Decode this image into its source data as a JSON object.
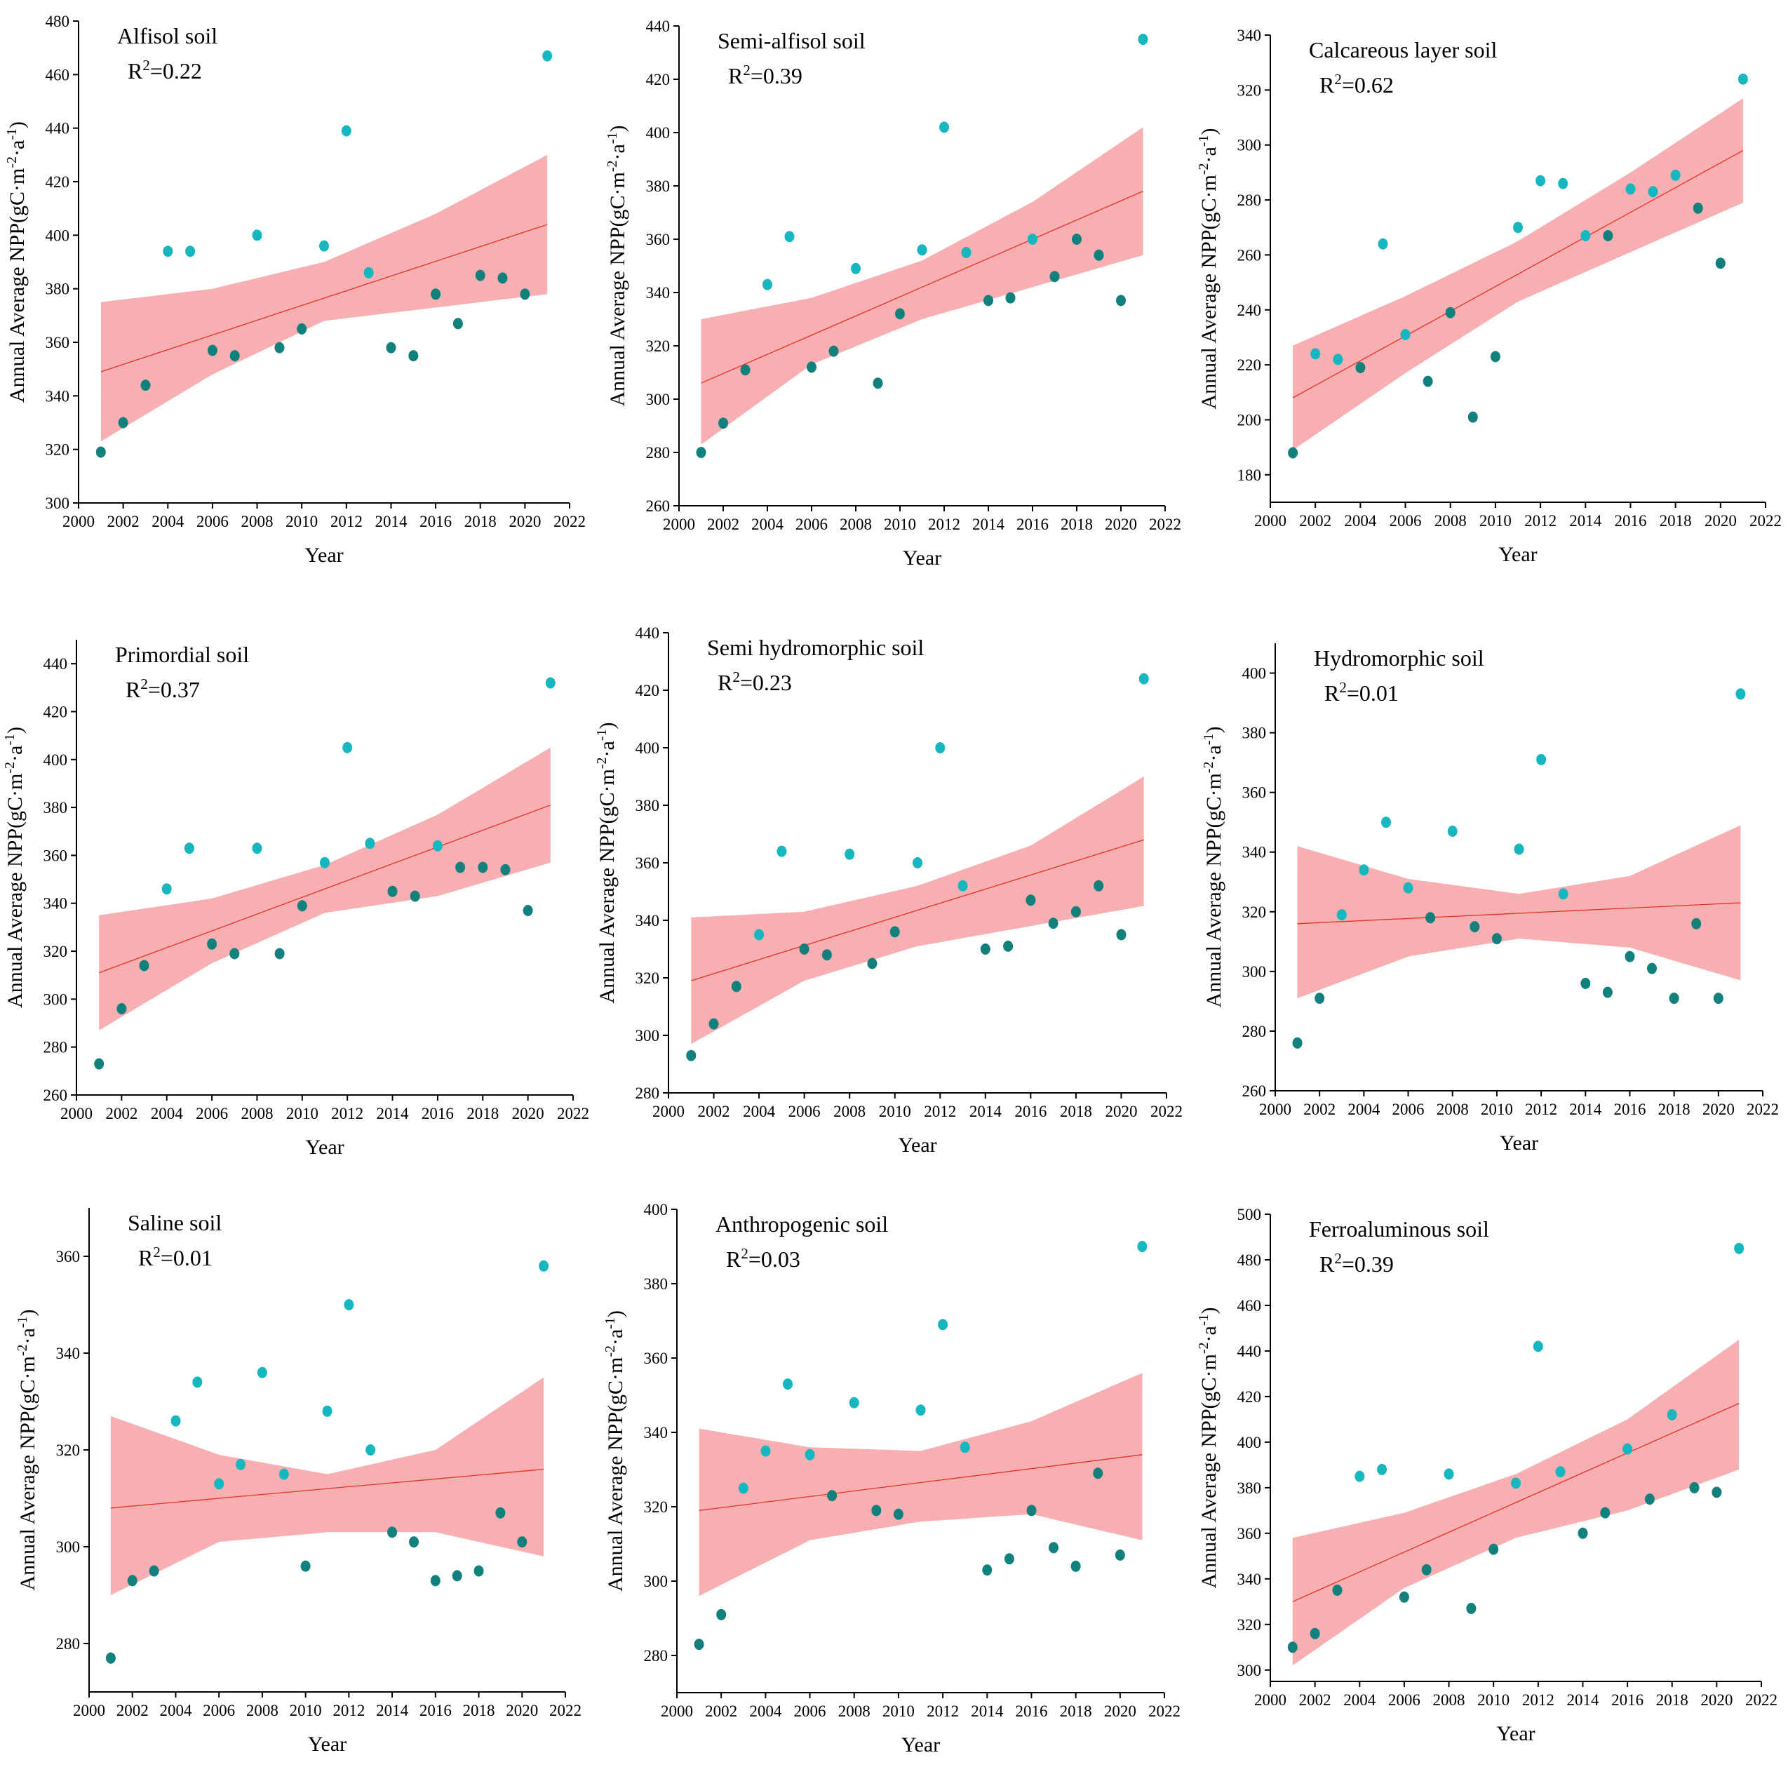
{
  "figure": {
    "xlabel": "Year",
    "ylabel": "Annual Average NPP(gC·m⁻²·a⁻¹)",
    "ylabel_parts": {
      "main": "Annual Average NPP(gC·m",
      "sup1": "-2",
      "mid": "·a",
      "sup2": "-1",
      "end": ")"
    },
    "colors": {
      "point_above": "#17b7bf",
      "point_below": "#12807d",
      "fit_line": "#e8302a",
      "confidence_band": "#f7a1a3"
    }
  },
  "chart_data": [
    {
      "type": "scatter",
      "title": "Alfisol soil",
      "r2_label": "R",
      "r2_sup": "2",
      "r2_value": "=0.22",
      "xlabel": "Year",
      "ylabel": "Annual Average NPP(gC·m⁻²·a⁻¹)",
      "xlim": [
        2000,
        2022
      ],
      "xticks": [
        2000,
        2002,
        2004,
        2006,
        2008,
        2010,
        2012,
        2014,
        2016,
        2018,
        2020,
        2022
      ],
      "ylim": [
        300,
        480
      ],
      "yticks": [
        300,
        320,
        340,
        360,
        380,
        400,
        420,
        440,
        460,
        480
      ],
      "x": [
        2001,
        2002,
        2003,
        2004,
        2005,
        2006,
        2007,
        2008,
        2009,
        2010,
        2011,
        2012,
        2013,
        2014,
        2015,
        2016,
        2017,
        2018,
        2019,
        2020,
        2021
      ],
      "values": [
        319,
        330,
        344,
        394,
        394,
        357,
        355,
        400,
        358,
        365,
        396,
        439,
        386,
        358,
        355,
        378,
        367,
        385,
        384,
        378,
        467
      ],
      "fit": {
        "x": [
          2001,
          2021
        ],
        "y": [
          349,
          404
        ]
      },
      "band": {
        "x": [
          2001,
          2006,
          2011,
          2016,
          2021
        ],
        "upper": [
          375,
          380,
          390,
          408,
          430
        ],
        "lower": [
          323,
          348,
          368,
          373,
          378
        ]
      }
    },
    {
      "type": "scatter",
      "title": "Semi-alfisol soil",
      "r2_label": "R",
      "r2_sup": "2",
      "r2_value": "=0.39",
      "xlabel": "Year",
      "ylabel": "Annual Average NPP(gC·m⁻²·a⁻¹)",
      "xlim": [
        2000,
        2022
      ],
      "xticks": [
        2000,
        2002,
        2004,
        2006,
        2008,
        2010,
        2012,
        2014,
        2016,
        2018,
        2020,
        2022
      ],
      "ylim": [
        260,
        440
      ],
      "yticks": [
        260,
        280,
        300,
        320,
        340,
        360,
        380,
        400,
        420,
        440
      ],
      "x": [
        2001,
        2002,
        2003,
        2004,
        2005,
        2006,
        2007,
        2008,
        2009,
        2010,
        2011,
        2012,
        2013,
        2014,
        2015,
        2016,
        2017,
        2018,
        2019,
        2020,
        2021
      ],
      "values": [
        280,
        291,
        311,
        343,
        361,
        312,
        318,
        349,
        306,
        332,
        356,
        402,
        355,
        337,
        338,
        360,
        346,
        360,
        354,
        337,
        435
      ],
      "fit": {
        "x": [
          2001,
          2021
        ],
        "y": [
          306,
          378
        ]
      },
      "band": {
        "x": [
          2001,
          2006,
          2011,
          2016,
          2021
        ],
        "upper": [
          330,
          338,
          352,
          374,
          402
        ],
        "lower": [
          283,
          313,
          330,
          342,
          354
        ]
      }
    },
    {
      "type": "scatter",
      "title": "Calcareous layer soil",
      "r2_label": "R",
      "r2_sup": "2",
      "r2_value": "=0.62",
      "xlabel": "Year",
      "ylabel": "Annual Average NPP(gC·m⁻²·a⁻¹)",
      "xlim": [
        2000,
        2022
      ],
      "xticks": [
        2000,
        2002,
        2004,
        2006,
        2008,
        2010,
        2012,
        2014,
        2016,
        2018,
        2020,
        2022
      ],
      "ylim": [
        170,
        340
      ],
      "yticks": [
        180,
        200,
        220,
        240,
        260,
        280,
        300,
        320,
        340
      ],
      "x": [
        2001,
        2002,
        2003,
        2004,
        2005,
        2006,
        2007,
        2008,
        2009,
        2010,
        2011,
        2012,
        2013,
        2014,
        2015,
        2016,
        2017,
        2018,
        2019,
        2020,
        2021
      ],
      "values": [
        188,
        224,
        222,
        219,
        264,
        231,
        214,
        239,
        201,
        223,
        270,
        287,
        286,
        267,
        267,
        284,
        283,
        289,
        277,
        257,
        324
      ],
      "fit": {
        "x": [
          2001,
          2021
        ],
        "y": [
          208,
          298
        ]
      },
      "band": {
        "x": [
          2001,
          2006,
          2011,
          2016,
          2021
        ],
        "upper": [
          227,
          245,
          265,
          290,
          317
        ],
        "lower": [
          189,
          217,
          243,
          261,
          279
        ]
      }
    },
    {
      "type": "scatter",
      "title": "Primordial soil",
      "r2_label": "R",
      "r2_sup": "2",
      "r2_value": "=0.37",
      "xlabel": "Year",
      "ylabel": "Annual Average NPP(gC·m⁻²·a⁻¹)",
      "xlim": [
        2000,
        2022
      ],
      "xticks": [
        2000,
        2002,
        2004,
        2006,
        2008,
        2010,
        2012,
        2014,
        2016,
        2018,
        2020,
        2022
      ],
      "ylim": [
        260,
        450
      ],
      "yticks": [
        260,
        280,
        300,
        320,
        340,
        360,
        380,
        400,
        420,
        440
      ],
      "x": [
        2001,
        2002,
        2003,
        2004,
        2005,
        2006,
        2007,
        2008,
        2009,
        2010,
        2011,
        2012,
        2013,
        2014,
        2015,
        2016,
        2017,
        2018,
        2019,
        2020,
        2021
      ],
      "values": [
        273,
        296,
        314,
        346,
        363,
        323,
        319,
        363,
        319,
        339,
        357,
        405,
        365,
        345,
        343,
        364,
        355,
        355,
        354,
        337,
        432
      ],
      "fit": {
        "x": [
          2001,
          2021
        ],
        "y": [
          311,
          381
        ]
      },
      "band": {
        "x": [
          2001,
          2006,
          2011,
          2016,
          2021
        ],
        "upper": [
          335,
          342,
          356,
          377,
          405
        ],
        "lower": [
          287,
          315,
          336,
          343,
          357
        ]
      }
    },
    {
      "type": "scatter",
      "title": "Semi hydromorphic soil",
      "r2_label": "R",
      "r2_sup": "2",
      "r2_value": "=0.23",
      "xlabel": "Year",
      "ylabel": "Annual Average NPP(gC·m⁻²·a⁻¹)",
      "xlim": [
        2000,
        2022
      ],
      "xticks": [
        2000,
        2002,
        2004,
        2006,
        2008,
        2010,
        2012,
        2014,
        2016,
        2018,
        2020,
        2022
      ],
      "ylim": [
        280,
        440
      ],
      "yticks": [
        280,
        300,
        320,
        340,
        360,
        380,
        400,
        420,
        440
      ],
      "x": [
        2001,
        2002,
        2003,
        2004,
        2005,
        2006,
        2007,
        2008,
        2009,
        2010,
        2011,
        2012,
        2013,
        2014,
        2015,
        2016,
        2017,
        2018,
        2019,
        2020,
        2021
      ],
      "values": [
        293,
        304,
        317,
        335,
        364,
        330,
        328,
        363,
        325,
        336,
        360,
        400,
        352,
        330,
        331,
        347,
        339,
        343,
        352,
        335,
        424
      ],
      "fit": {
        "x": [
          2001,
          2021
        ],
        "y": [
          319,
          368
        ]
      },
      "band": {
        "x": [
          2001,
          2006,
          2011,
          2016,
          2021
        ],
        "upper": [
          341,
          343,
          352,
          366,
          390
        ],
        "lower": [
          297,
          319,
          331,
          338,
          345
        ]
      }
    },
    {
      "type": "scatter",
      "title": "Hydromorphic soil",
      "r2_label": "R",
      "r2_sup": "2",
      "r2_value": "=0.01",
      "xlabel": "Year",
      "ylabel": "Annual Average NPP(gC·m⁻²·a⁻¹)",
      "xlim": [
        2000,
        2022
      ],
      "xticks": [
        2000,
        2002,
        2004,
        2006,
        2008,
        2010,
        2012,
        2014,
        2016,
        2018,
        2020,
        2022
      ],
      "ylim": [
        260,
        410
      ],
      "yticks": [
        260,
        280,
        300,
        320,
        340,
        360,
        380,
        400
      ],
      "x": [
        2001,
        2002,
        2003,
        2004,
        2005,
        2006,
        2007,
        2008,
        2009,
        2010,
        2011,
        2012,
        2013,
        2014,
        2015,
        2016,
        2017,
        2018,
        2019,
        2020,
        2021
      ],
      "values": [
        276,
        291,
        319,
        334,
        350,
        328,
        318,
        347,
        315,
        311,
        341,
        371,
        326,
        296,
        293,
        305,
        301,
        291,
        316,
        291,
        393
      ],
      "fit": {
        "x": [
          2001,
          2021
        ],
        "y": [
          316,
          323
        ]
      },
      "band": {
        "x": [
          2001,
          2006,
          2011,
          2016,
          2021
        ],
        "upper": [
          342,
          331,
          326,
          332,
          349
        ],
        "lower": [
          291,
          305,
          311,
          308,
          297
        ]
      }
    },
    {
      "type": "scatter",
      "title": "Saline soil",
      "r2_label": "R",
      "r2_sup": "2",
      "r2_value": "=0.01",
      "xlabel": "Year",
      "ylabel": "Annual Average NPP(gC·m⁻²·a⁻¹)",
      "xlim": [
        2000,
        2022
      ],
      "xticks": [
        2000,
        2002,
        2004,
        2006,
        2008,
        2010,
        2012,
        2014,
        2016,
        2018,
        2020,
        2022
      ],
      "ylim": [
        270,
        370
      ],
      "yticks": [
        280,
        300,
        320,
        340,
        360
      ],
      "x": [
        2001,
        2002,
        2003,
        2004,
        2005,
        2006,
        2007,
        2008,
        2009,
        2010,
        2011,
        2012,
        2013,
        2014,
        2015,
        2016,
        2017,
        2018,
        2019,
        2020,
        2021
      ],
      "values": [
        277,
        293,
        295,
        326,
        334,
        313,
        317,
        336,
        315,
        296,
        328,
        350,
        320,
        303,
        301,
        293,
        294,
        295,
        307,
        301,
        358
      ],
      "fit": {
        "x": [
          2001,
          2021
        ],
        "y": [
          308,
          316
        ]
      },
      "band": {
        "x": [
          2001,
          2006,
          2011,
          2016,
          2021
        ],
        "upper": [
          327,
          319,
          315,
          320,
          335
        ],
        "lower": [
          290,
          301,
          303,
          303,
          298
        ]
      }
    },
    {
      "type": "scatter",
      "title": "Anthropogenic soil",
      "r2_label": "R",
      "r2_sup": "2",
      "r2_value": "=0.03",
      "xlabel": "Year",
      "ylabel": "Annual Average NPP(gC·m⁻²·a⁻¹)",
      "xlim": [
        2000,
        2022
      ],
      "xticks": [
        2000,
        2002,
        2004,
        2006,
        2008,
        2010,
        2012,
        2014,
        2016,
        2018,
        2020,
        2022
      ],
      "ylim": [
        270,
        400
      ],
      "yticks": [
        280,
        300,
        320,
        340,
        360,
        380,
        400
      ],
      "x": [
        2001,
        2002,
        2003,
        2004,
        2005,
        2006,
        2007,
        2008,
        2009,
        2010,
        2011,
        2012,
        2013,
        2014,
        2015,
        2016,
        2017,
        2018,
        2019,
        2020,
        2021
      ],
      "values": [
        283,
        291,
        325,
        335,
        353,
        334,
        323,
        348,
        319,
        318,
        346,
        369,
        336,
        303,
        306,
        319,
        309,
        304,
        329,
        307,
        390
      ],
      "fit": {
        "x": [
          2001,
          2021
        ],
        "y": [
          319,
          334
        ]
      },
      "band": {
        "x": [
          2001,
          2006,
          2011,
          2016,
          2021
        ],
        "upper": [
          341,
          336,
          335,
          343,
          356
        ],
        "lower": [
          296,
          311,
          316,
          318,
          311
        ]
      }
    },
    {
      "type": "scatter",
      "title": "Ferroaluminous soil",
      "r2_label": "R",
      "r2_sup": "2",
      "r2_value": "=0.39",
      "xlabel": "Year",
      "ylabel": "Annual Average NPP(gC·m⁻²·a⁻¹)",
      "xlim": [
        2000,
        2022
      ],
      "xticks": [
        2000,
        2002,
        2004,
        2006,
        2008,
        2010,
        2012,
        2014,
        2016,
        2018,
        2020,
        2022
      ],
      "ylim": [
        295,
        500
      ],
      "yticks": [
        300,
        320,
        340,
        360,
        380,
        400,
        420,
        440,
        460,
        480,
        500
      ],
      "x": [
        2001,
        2002,
        2003,
        2004,
        2005,
        2006,
        2007,
        2008,
        2009,
        2010,
        2011,
        2012,
        2013,
        2014,
        2015,
        2016,
        2017,
        2018,
        2019,
        2020,
        2021
      ],
      "values": [
        310,
        316,
        335,
        385,
        388,
        332,
        344,
        386,
        327,
        353,
        382,
        442,
        387,
        360,
        369,
        397,
        375,
        412,
        380,
        378,
        485
      ],
      "fit": {
        "x": [
          2001,
          2021
        ],
        "y": [
          330,
          417
        ]
      },
      "band": {
        "x": [
          2001,
          2006,
          2011,
          2016,
          2021
        ],
        "upper": [
          358,
          369,
          386,
          410,
          445
        ],
        "lower": [
          302,
          336,
          358,
          370,
          388
        ]
      }
    }
  ]
}
